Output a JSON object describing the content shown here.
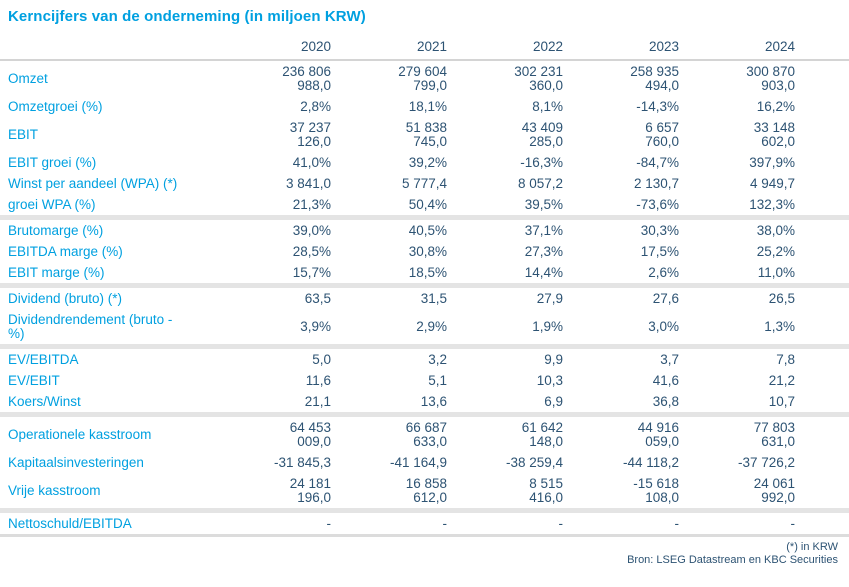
{
  "title": "Kerncijfers van de onderneming (in miljoen KRW)",
  "colors": {
    "accent": "#00A0E0",
    "value": "#2D5373",
    "separator": "#E4E4E4",
    "rule": "#D4D4D4"
  },
  "years": [
    "2020",
    "2021",
    "2022",
    "2023",
    "2024"
  ],
  "sections": [
    {
      "rows": [
        {
          "label": "Omzet",
          "values": [
            "236 806\n988,0",
            "279 604\n799,0",
            "302 231\n360,0",
            "258 935\n494,0",
            "300 870\n903,0"
          ]
        },
        {
          "label": "Omzetgroei (%)",
          "values": [
            "2,8%",
            "18,1%",
            "8,1%",
            "-14,3%",
            "16,2%"
          ]
        },
        {
          "label": "EBIT",
          "values": [
            "37 237\n126,0",
            "51 838\n745,0",
            "43 409\n285,0",
            "6 657\n760,0",
            "33 148\n602,0"
          ]
        },
        {
          "label": "EBIT groei (%)",
          "values": [
            "41,0%",
            "39,2%",
            "-16,3%",
            "-84,7%",
            "397,9%"
          ]
        },
        {
          "label": "Winst per aandeel (WPA) (*)",
          "values": [
            "3 841,0",
            "5 777,4",
            "8 057,2",
            "2 130,7",
            "4 949,7"
          ]
        },
        {
          "label": "groei WPA (%)",
          "values": [
            "21,3%",
            "50,4%",
            "39,5%",
            "-73,6%",
            "132,3%"
          ]
        }
      ]
    },
    {
      "rows": [
        {
          "label": "Brutomarge (%)",
          "values": [
            "39,0%",
            "40,5%",
            "37,1%",
            "30,3%",
            "38,0%"
          ]
        },
        {
          "label": "EBITDA marge (%)",
          "values": [
            "28,5%",
            "30,8%",
            "27,3%",
            "17,5%",
            "25,2%"
          ]
        },
        {
          "label": "EBIT marge (%)",
          "values": [
            "15,7%",
            "18,5%",
            "14,4%",
            "2,6%",
            "11,0%"
          ]
        }
      ]
    },
    {
      "rows": [
        {
          "label": "Dividend (bruto) (*)",
          "values": [
            "63,5",
            "31,5",
            "27,9",
            "27,6",
            "26,5"
          ]
        },
        {
          "label": "Dividendrendement (bruto -\n%)",
          "values": [
            "3,9%",
            "2,9%",
            "1,9%",
            "3,0%",
            "1,3%"
          ]
        }
      ]
    },
    {
      "rows": [
        {
          "label": "EV/EBITDA",
          "values": [
            "5,0",
            "3,2",
            "9,9",
            "3,7",
            "7,8"
          ]
        },
        {
          "label": "EV/EBIT",
          "values": [
            "11,6",
            "5,1",
            "10,3",
            "41,6",
            "21,2"
          ]
        },
        {
          "label": "Koers/Winst",
          "values": [
            "21,1",
            "13,6",
            "6,9",
            "36,8",
            "10,7"
          ]
        }
      ]
    },
    {
      "rows": [
        {
          "label": "Operationele kasstroom",
          "values": [
            "64 453\n009,0",
            "66 687\n633,0",
            "61 642\n148,0",
            "44 916\n059,0",
            "77 803\n631,0"
          ]
        },
        {
          "label": "Kapitaalsinvesteringen",
          "values": [
            "-31 845,3",
            "-41 164,9",
            "-38 259,4",
            "-44 118,2",
            "-37 726,2"
          ]
        },
        {
          "label": "Vrije kasstroom",
          "values": [
            "24 181\n196,0",
            "16 858\n612,0",
            "8 515\n416,0",
            "-15 618\n108,0",
            "24 061\n992,0"
          ]
        }
      ]
    },
    {
      "rows": [
        {
          "label": "Nettoschuld/EBITDA",
          "values": [
            "-",
            "-",
            "-",
            "-",
            "-"
          ]
        }
      ]
    }
  ],
  "footnote": "(*) in KRW",
  "source": "Bron: LSEG Datastream en KBC Securities"
}
